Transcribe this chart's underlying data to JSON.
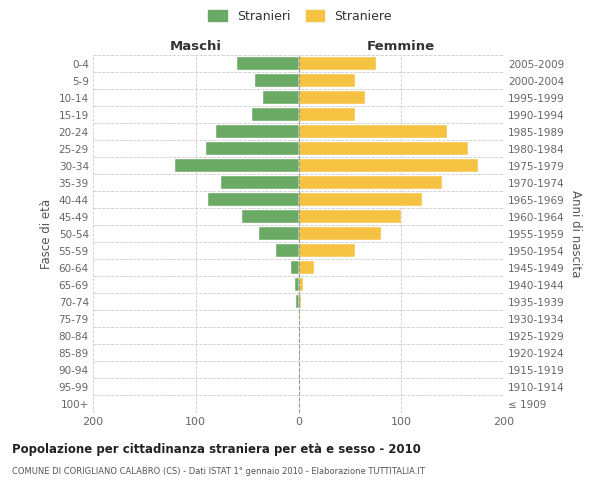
{
  "age_groups": [
    "100+",
    "95-99",
    "90-94",
    "85-89",
    "80-84",
    "75-79",
    "70-74",
    "65-69",
    "60-64",
    "55-59",
    "50-54",
    "45-49",
    "40-44",
    "35-39",
    "30-34",
    "25-29",
    "20-24",
    "15-19",
    "10-14",
    "5-9",
    "0-4"
  ],
  "birth_years": [
    "≤ 1909",
    "1910-1914",
    "1915-1919",
    "1920-1924",
    "1925-1929",
    "1930-1934",
    "1935-1939",
    "1940-1944",
    "1945-1949",
    "1950-1954",
    "1955-1959",
    "1960-1964",
    "1965-1969",
    "1970-1974",
    "1975-1979",
    "1980-1984",
    "1985-1989",
    "1990-1994",
    "1995-1999",
    "2000-2004",
    "2005-2009"
  ],
  "males": [
    0,
    0,
    0,
    0,
    0,
    0,
    2,
    3,
    7,
    22,
    38,
    55,
    88,
    75,
    120,
    90,
    80,
    45,
    35,
    42,
    60
  ],
  "females": [
    0,
    0,
    0,
    1,
    1,
    1,
    2,
    4,
    15,
    55,
    80,
    100,
    120,
    140,
    175,
    165,
    145,
    55,
    65,
    55,
    75
  ],
  "male_color": "#6aaa64",
  "female_color": "#f5c242",
  "male_label": "Stranieri",
  "female_label": "Straniere",
  "title": "Popolazione per cittadinanza straniera per età e sesso - 2010",
  "subtitle": "COMUNE DI CORIGLIANO CALABRO (CS) - Dati ISTAT 1° gennaio 2010 - Elaborazione TUTTITALIA.IT",
  "ylabel_left": "Fasce di età",
  "ylabel_right": "Anni di nascita",
  "xlabel_maschi": "Maschi",
  "xlabel_femmine": "Femmine",
  "xlim": 200,
  "background_color": "#ffffff",
  "grid_color": "#cccccc"
}
